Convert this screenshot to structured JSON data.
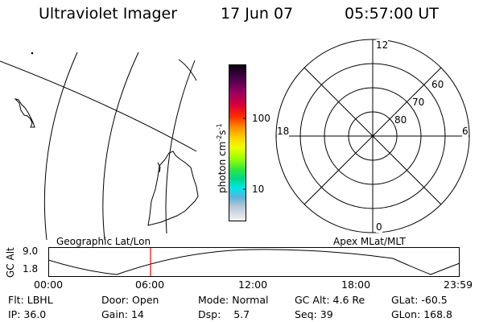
{
  "header": {
    "title": "Ultraviolet Imager",
    "date": "17 Jun 07",
    "time": "05:57:00 UT"
  },
  "colorbar": {
    "ticks": [
      "100",
      "10"
    ],
    "units_main": "photon cm",
    "units_exp1": "-2",
    "units_mid": "s",
    "units_exp2": "-1"
  },
  "polar_plot": {
    "mlt_labels": [
      "12",
      "18",
      "6",
      "0"
    ],
    "lat_labels": [
      "60",
      "70",
      "80"
    ]
  },
  "map_labels": {
    "left": "Geographic Lat/Lon",
    "right": "Apex MLat/MLT"
  },
  "altitude_plot": {
    "ylabel": "GC Alt",
    "ticks": [
      "9.0",
      "1.8"
    ],
    "x_ticks": [
      "00:00",
      "06:00",
      "12:00",
      "18:00",
      "23:59"
    ],
    "marker_time": "06:00"
  },
  "status": {
    "row1": [
      {
        "label": "Flt:",
        "value": "LBHL"
      },
      {
        "label": "Door:",
        "value": "Open"
      },
      {
        "label": "Mode:",
        "value": "Normal"
      },
      {
        "label": "GC Alt:",
        "value": "4.6 Re"
      },
      {
        "label": "GLat:",
        "value": "-60.5"
      }
    ],
    "row2": [
      {
        "label": "IP:",
        "value": "36.0"
      },
      {
        "label": "Gain:",
        "value": "14"
      },
      {
        "label": "Dsp:",
        "value": "5.7"
      },
      {
        "label": "Seq:",
        "value": "39"
      },
      {
        "label": "GLon:",
        "value": "168.8"
      }
    ]
  }
}
